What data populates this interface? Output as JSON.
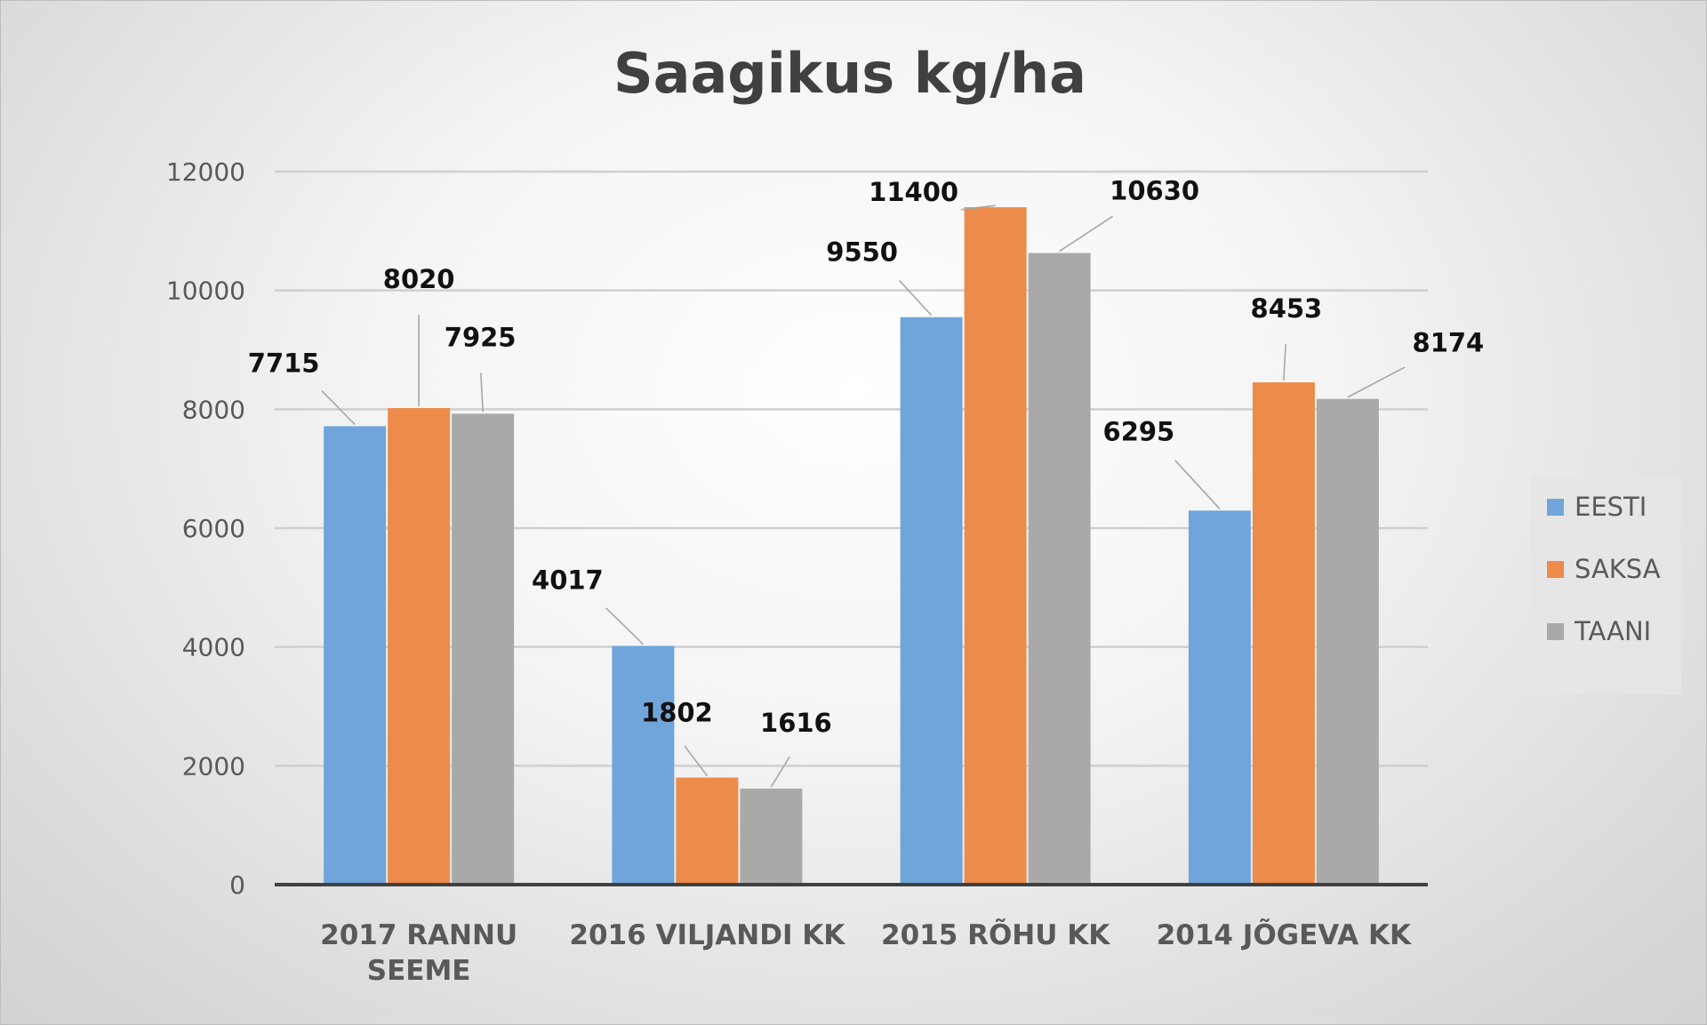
{
  "chart_data": {
    "type": "bar",
    "title": "Saagikus kg/ha",
    "categories": [
      [
        "2017 RANNU",
        "SEEME"
      ],
      [
        "2016 VILJANDI KK"
      ],
      [
        "2015 RÕHU KK"
      ],
      [
        "2014 JÕGEVA KK"
      ]
    ],
    "series": [
      {
        "name": "EESTI",
        "color": "#6fa5da",
        "values": [
          7715,
          4017,
          9550,
          6295
        ]
      },
      {
        "name": "SAKSA",
        "color": "#ed8b4b",
        "values": [
          8020,
          1802,
          11400,
          8453
        ]
      },
      {
        "name": "TAANI",
        "color": "#a9a9a9",
        "values": [
          7925,
          1616,
          10630,
          8174
        ]
      }
    ],
    "ylim": [
      0,
      12000
    ],
    "yticks": [
      0,
      2000,
      4000,
      6000,
      8000,
      10000,
      12000
    ],
    "grid": true,
    "legend_position": "right"
  }
}
